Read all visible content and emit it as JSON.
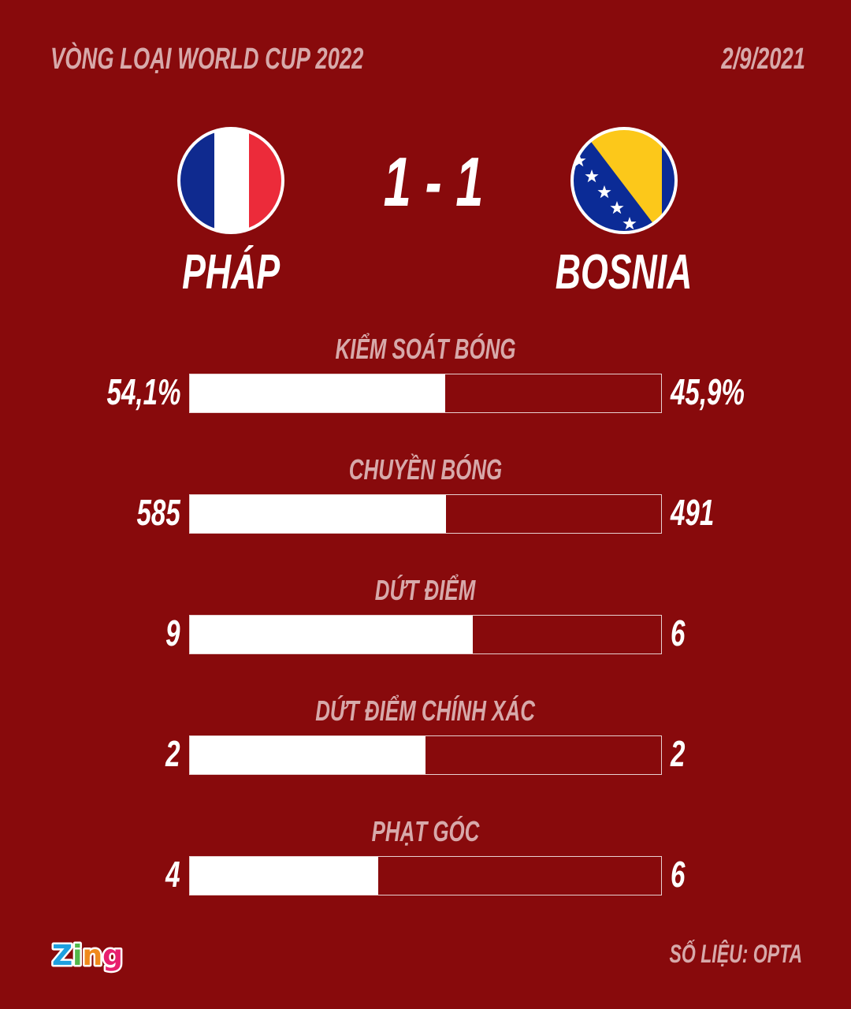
{
  "header": {
    "competition": "VÒNG LOẠI WORLD CUP 2022",
    "date": "2/9/2021"
  },
  "match": {
    "home": {
      "name": "PHÁP",
      "flag": "france-flag-icon"
    },
    "away": {
      "name": "BOSNIA",
      "flag": "bosnia-flag-icon"
    },
    "score": "1 - 1"
  },
  "colors": {
    "background": "#880a0c",
    "bar_home": "#ffffff",
    "label": "#d7a9aa"
  },
  "chart_data": {
    "type": "bar",
    "orientation": "horizontal-stacked-comparison",
    "series": [
      {
        "name": "PHÁP"
      },
      {
        "name": "BOSNIA"
      }
    ],
    "stats": [
      {
        "label": "KIỂM SOÁT BÓNG",
        "home": 54.1,
        "away": 45.9,
        "home_text": "54,1%",
        "away_text": "45,9%"
      },
      {
        "label": "CHUYỀN BÓNG",
        "home": 585,
        "away": 491,
        "home_text": "585",
        "away_text": "491"
      },
      {
        "label": "DỨT ĐIỂM",
        "home": 9,
        "away": 6,
        "home_text": "9",
        "away_text": "6"
      },
      {
        "label": "DỨT ĐIỂM CHÍNH XÁC",
        "home": 2,
        "away": 2,
        "home_text": "2",
        "away_text": "2"
      },
      {
        "label": "PHẠT GÓC",
        "home": 4,
        "away": 6,
        "home_text": "4",
        "away_text": "6"
      }
    ]
  },
  "footer": {
    "logo": "Zing",
    "source": "SỐ LIỆU: OPTA"
  }
}
